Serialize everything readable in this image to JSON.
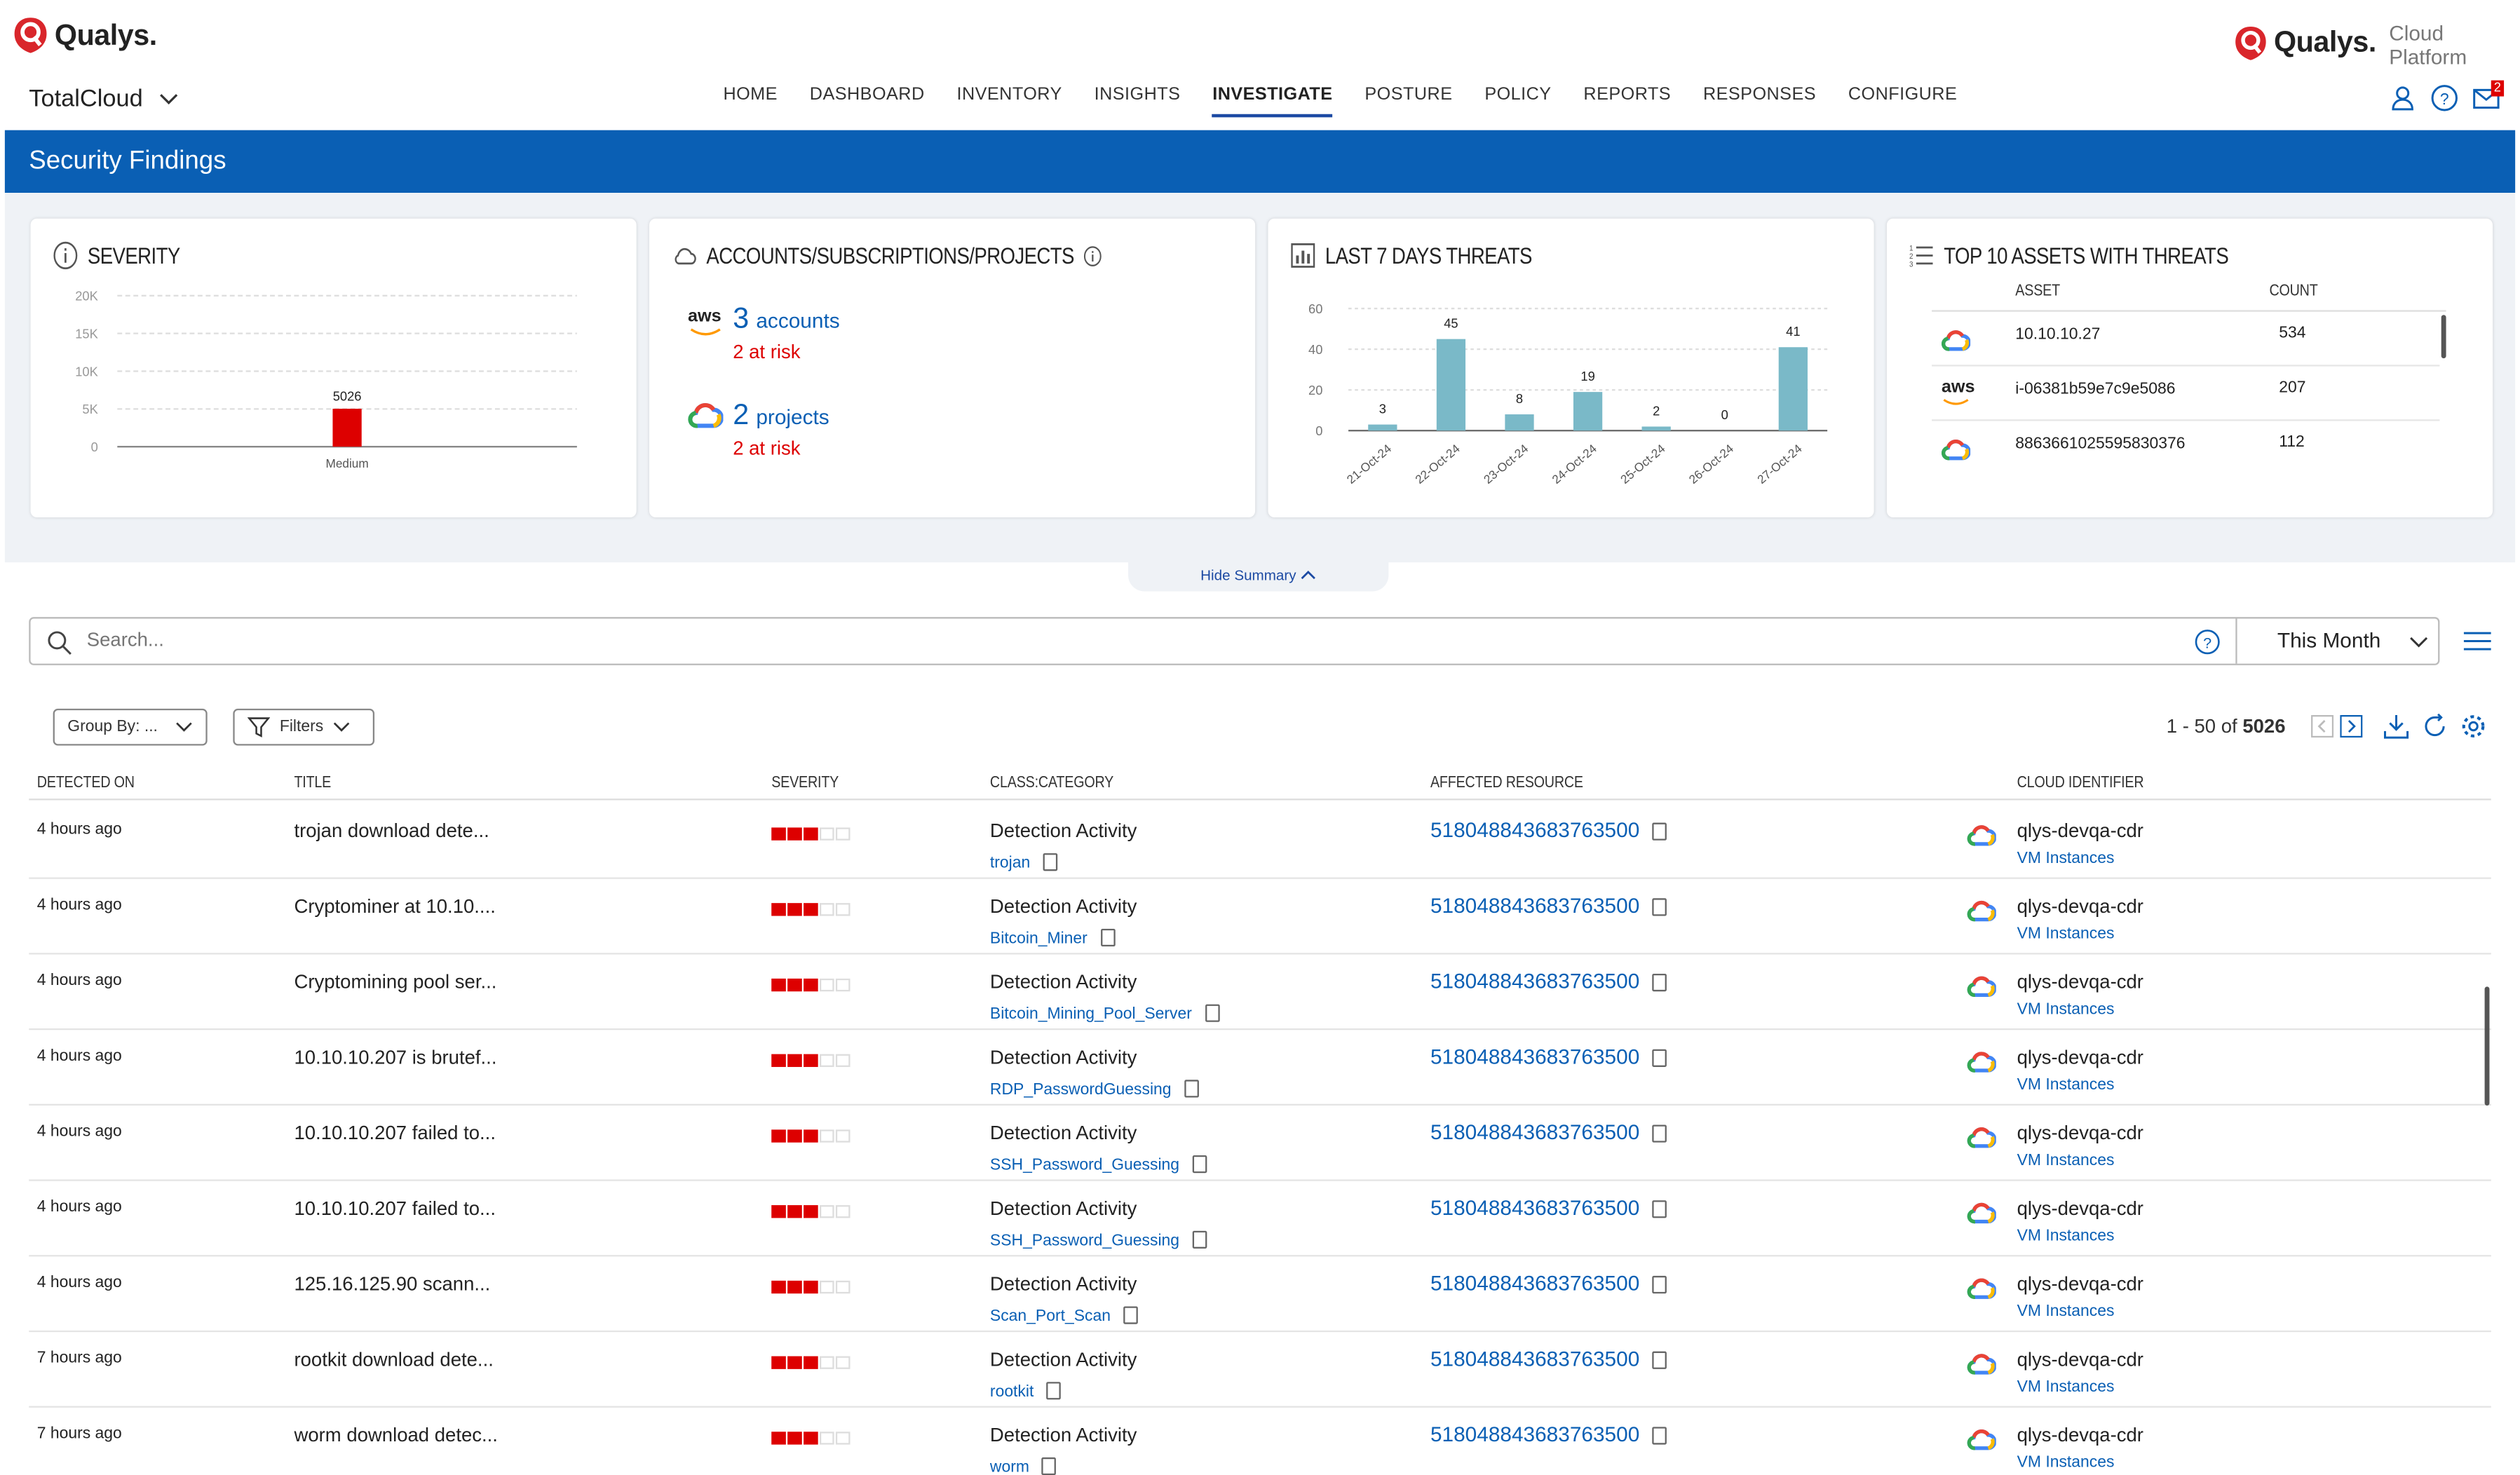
{
  "brand": {
    "name": "Qualys.",
    "platform": "Cloud Platform",
    "app": "TotalCloud"
  },
  "nav": [
    "HOME",
    "DASHBOARD",
    "INVENTORY",
    "INSIGHTS",
    "INVESTIGATE",
    "POSTURE",
    "POLICY",
    "REPORTS",
    "RESPONSES",
    "CONFIGURE"
  ],
  "nav_active": "INVESTIGATE",
  "notifications": "2",
  "page_title": "Security Findings",
  "severity_card": {
    "title": "SEVERITY"
  },
  "accounts_card": {
    "title": "ACCOUNTS/SUBSCRIPTIONS/PROJECTS",
    "aws_logo": "aws",
    "aws_count": "3",
    "aws_label": "accounts",
    "aws_risk": "2 at risk",
    "gcp_count": "2",
    "gcp_label": "projects",
    "gcp_risk": "2 at risk"
  },
  "threats_card": {
    "title": "LAST 7 DAYS THREATS"
  },
  "assets_card": {
    "title": "TOP 10 ASSETS WITH THREATS",
    "col_asset": "ASSET",
    "col_count": "COUNT",
    "rows": [
      {
        "provider": "gcp",
        "asset": "10.10.10.27",
        "count": "534"
      },
      {
        "provider": "aws",
        "asset": "i-06381b59e7c9e5086",
        "count": "207"
      },
      {
        "provider": "gcp",
        "asset": "8863661025595830376",
        "count": "112"
      }
    ]
  },
  "hide_summary": "Hide Summary",
  "search": {
    "placeholder": "Search...",
    "range": "This Month"
  },
  "group_by": "Group By: ...",
  "filters": "Filters",
  "pager": {
    "range": "1 - 50 of",
    "total": "5026"
  },
  "columns": {
    "detected": "DETECTED ON",
    "title": "TITLE",
    "severity": "SEVERITY",
    "class": "CLASS:CATEGORY",
    "resource": "AFFECTED RESOURCE",
    "cloud": "CLOUD IDENTIFIER"
  },
  "rows": [
    {
      "detected": "4 hours ago",
      "title": "trojan download dete...",
      "class": "Detection Activity",
      "category": "trojan",
      "resource": "518048843683763500",
      "cloud": "qlys-devqa-cdr",
      "cloud_type": "VM Instances"
    },
    {
      "detected": "4 hours ago",
      "title": "Cryptominer at 10.10....",
      "class": "Detection Activity",
      "category": "Bitcoin_Miner",
      "resource": "518048843683763500",
      "cloud": "qlys-devqa-cdr",
      "cloud_type": "VM Instances"
    },
    {
      "detected": "4 hours ago",
      "title": "Cryptomining pool ser...",
      "class": "Detection Activity",
      "category": "Bitcoin_Mining_Pool_Server",
      "resource": "518048843683763500",
      "cloud": "qlys-devqa-cdr",
      "cloud_type": "VM Instances"
    },
    {
      "detected": "4 hours ago",
      "title": "10.10.10.207 is brutef...",
      "class": "Detection Activity",
      "category": "RDP_PasswordGuessing",
      "resource": "518048843683763500",
      "cloud": "qlys-devqa-cdr",
      "cloud_type": "VM Instances"
    },
    {
      "detected": "4 hours ago",
      "title": "10.10.10.207 failed to...",
      "class": "Detection Activity",
      "category": "SSH_Password_Guessing",
      "resource": "518048843683763500",
      "cloud": "qlys-devqa-cdr",
      "cloud_type": "VM Instances"
    },
    {
      "detected": "4 hours ago",
      "title": "10.10.10.207 failed to...",
      "class": "Detection Activity",
      "category": "SSH_Password_Guessing",
      "resource": "518048843683763500",
      "cloud": "qlys-devqa-cdr",
      "cloud_type": "VM Instances"
    },
    {
      "detected": "4 hours ago",
      "title": "125.16.125.90 scann...",
      "class": "Detection Activity",
      "category": "Scan_Port_Scan",
      "resource": "518048843683763500",
      "cloud": "qlys-devqa-cdr",
      "cloud_type": "VM Instances"
    },
    {
      "detected": "7 hours ago",
      "title": "rootkit download dete...",
      "class": "Detection Activity",
      "category": "rootkit",
      "resource": "518048843683763500",
      "cloud": "qlys-devqa-cdr",
      "cloud_type": "VM Instances"
    },
    {
      "detected": "7 hours ago",
      "title": "worm download detec...",
      "class": "Detection Activity",
      "category": "worm",
      "resource": "518048843683763500",
      "cloud": "qlys-devqa-cdr",
      "cloud_type": "VM Instances"
    }
  ],
  "colors": {
    "brand_red": "#d9262b",
    "banner": "#0a5fb4",
    "bar_red": "#dd0000",
    "bar_teal": "#7ab9c8",
    "link": "#0a5fb4"
  },
  "chart_data": [
    {
      "type": "bar",
      "title": "SEVERITY",
      "categories": [
        "Medium"
      ],
      "values": [
        5026
      ],
      "ylim": [
        0,
        20000
      ],
      "yticks": [
        "0",
        "5K",
        "10K",
        "15K",
        "20K"
      ],
      "data_labels": [
        "5026"
      ],
      "grid": true
    },
    {
      "type": "bar",
      "title": "LAST 7 DAYS THREATS",
      "categories": [
        "21-Oct-24",
        "22-Oct-24",
        "23-Oct-24",
        "24-Oct-24",
        "25-Oct-24",
        "26-Oct-24",
        "27-Oct-24"
      ],
      "values": [
        3,
        45,
        8,
        19,
        2,
        0,
        41
      ],
      "ylim": [
        0,
        60
      ],
      "yticks": [
        "0",
        "20",
        "40",
        "60"
      ],
      "grid": true
    }
  ]
}
